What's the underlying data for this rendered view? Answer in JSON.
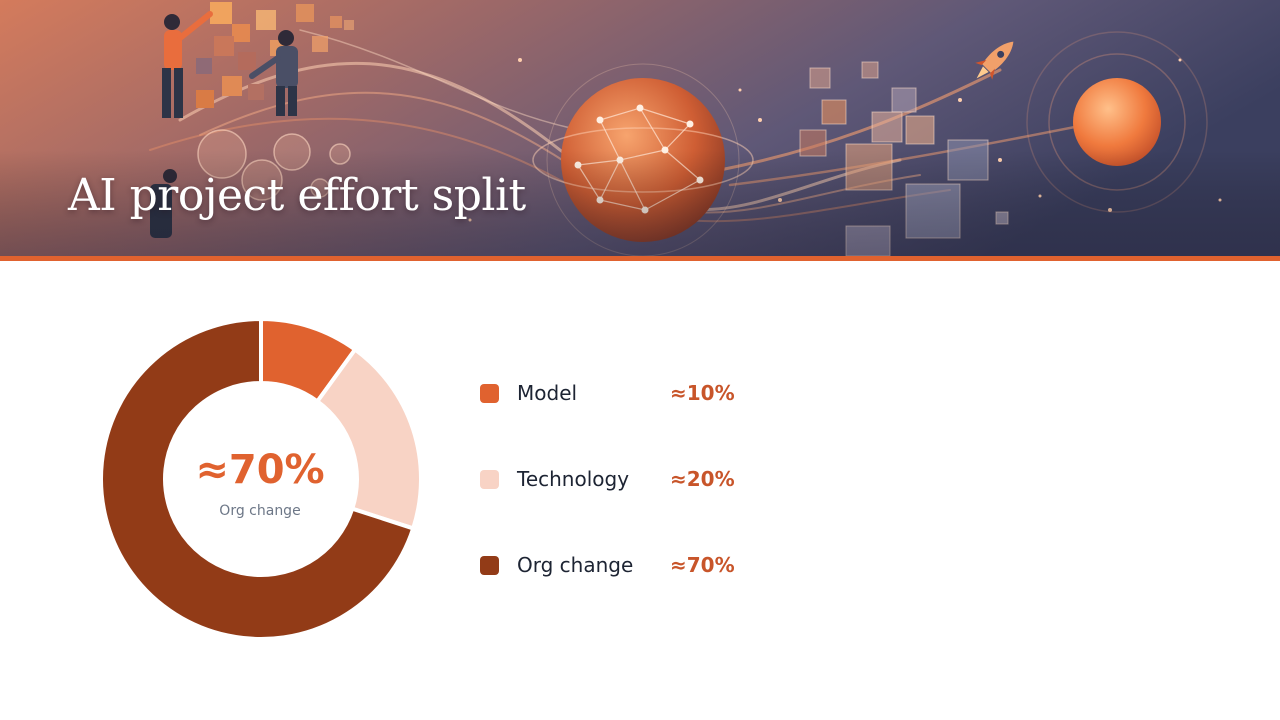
{
  "slide": {
    "title": "AI project effort split"
  },
  "colors": {
    "accent": "#e0622f",
    "model": "#e0622f",
    "technology": "#f8d3c5",
    "org_change": "#923b17",
    "value_text": "#c8552a"
  },
  "chart_data": {
    "type": "pie",
    "categories": [
      "Model",
      "Technology",
      "Org change"
    ],
    "values": [
      10,
      20,
      70
    ],
    "value_labels": [
      "≈10%",
      "≈20%",
      "≈70%"
    ],
    "donut_center": {
      "value": "≈70%",
      "label": "Org change"
    },
    "legend_position": "right"
  }
}
